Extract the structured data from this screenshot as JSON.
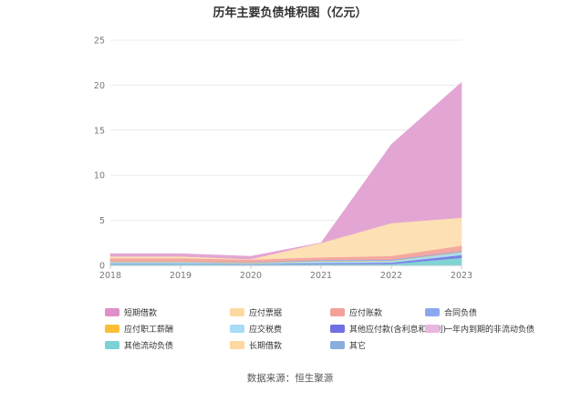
{
  "chart_data": {
    "type": "area",
    "stacked": true,
    "title": "历年主要负债堆积图（亿元）",
    "xlabel": "",
    "ylabel": "",
    "x": [
      "2018",
      "2019",
      "2020",
      "2021",
      "2022",
      "2023"
    ],
    "ylim": [
      0,
      25
    ],
    "yticks": [
      0,
      5,
      10,
      15,
      20,
      25
    ],
    "grid": true,
    "legend_position": "bottom",
    "series": [
      {
        "name": "其它",
        "color": "#8fb0d8",
        "values": [
          0.05,
          0.05,
          0.05,
          0.05,
          0.05,
          0.05
        ]
      },
      {
        "name": "长期借款",
        "color": "#fdd9a0",
        "values": [
          0,
          0,
          0,
          0,
          0,
          0
        ]
      },
      {
        "name": "其他流动负债",
        "color": "#80d4d4",
        "values": [
          0.1,
          0.1,
          0.05,
          0.1,
          0.1,
          0.8
        ]
      },
      {
        "name": "一年内到期的非流动负债",
        "color": "#e8b8e0",
        "values": [
          0,
          0,
          0,
          0,
          0,
          0
        ]
      },
      {
        "name": "其他应付款(含利息和股利)",
        "color": "#7b80e6",
        "values": [
          0.05,
          0.05,
          0.05,
          0.1,
          0.15,
          0.3
        ]
      },
      {
        "name": "应交税费",
        "color": "#a8dcf0",
        "values": [
          0.15,
          0.15,
          0.1,
          0.2,
          0.2,
          0.3
        ]
      },
      {
        "name": "应付职工薪酬",
        "color": "#fcc850",
        "values": [
          0.05,
          0.05,
          0.05,
          0.05,
          0.05,
          0.05
        ]
      },
      {
        "name": "合同负债",
        "color": "#8faaf2",
        "values": [
          0.05,
          0.05,
          0.05,
          0.1,
          0.1,
          0.1
        ]
      },
      {
        "name": "应付账款",
        "color": "#f4a8a0",
        "values": [
          0.35,
          0.35,
          0.3,
          0.3,
          0.4,
          0.6
        ]
      },
      {
        "name": "应付票据",
        "color": "#fde0b4",
        "values": [
          0.2,
          0.2,
          0.05,
          1.6,
          3.65,
          3.1
        ]
      },
      {
        "name": "短期借款",
        "color": "#e3a6d4",
        "values": [
          0.3,
          0.3,
          0.3,
          0.0,
          8.7,
          15.0
        ]
      }
    ]
  },
  "legend": [
    {
      "label": "短期借款",
      "color": "#e08fc8"
    },
    {
      "label": "应付票据",
      "color": "#fdd9a0"
    },
    {
      "label": "应付账款",
      "color": "#f4a09a"
    },
    {
      "label": "合同负债",
      "color": "#8aa8f0"
    },
    {
      "label": "应付职工薪酬",
      "color": "#fbbf36"
    },
    {
      "label": "应交税费",
      "color": "#a8dcf4"
    },
    {
      "label": "其他应付款(含利息和股利)",
      "color": "#7070e0"
    },
    {
      "label": "一年内到期的非流动负债",
      "color": "#e8b6e0"
    },
    {
      "label": "其他流动负债",
      "color": "#7cd2d2"
    },
    {
      "label": "长期借款",
      "color": "#fdd8a0"
    },
    {
      "label": "其它",
      "color": "#8aaedc"
    }
  ],
  "source": "数据来源：恒生聚源"
}
